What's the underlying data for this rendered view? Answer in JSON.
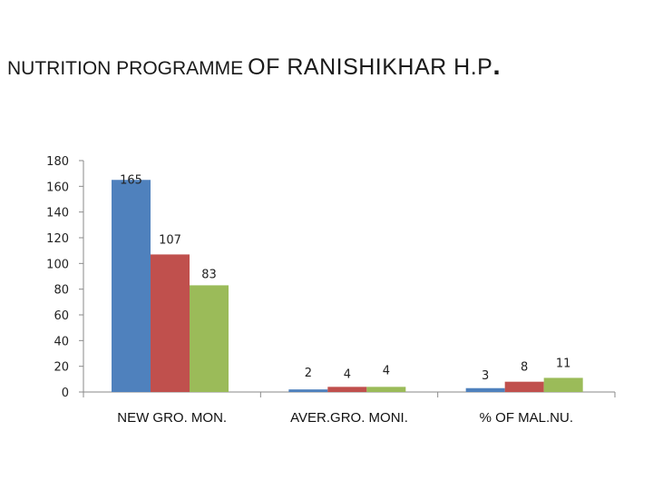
{
  "title_main": "NUTRITION PROGRAMME",
  "title_rest": "OF RANISHIKHAR   H.P",
  "title_dot": ".",
  "chart_data": {
    "type": "bar",
    "title": "NUTRITION PROGRAMME OF RANISHIKHAR   H.P.",
    "categories": [
      "NEW GRO. MON.",
      "AVER.GRO. MONI.",
      "% OF MAL.NU."
    ],
    "series": [
      {
        "values": [
          165,
          2,
          3
        ],
        "color": "#4f81bd"
      },
      {
        "values": [
          107,
          4,
          8
        ],
        "color": "#c0504d"
      },
      {
        "values": [
          83,
          4,
          11
        ],
        "color": "#9bbb59"
      }
    ],
    "ylim": [
      0,
      180
    ],
    "yticks": [
      0,
      20,
      40,
      60,
      80,
      100,
      120,
      140,
      160,
      180
    ],
    "grid": false,
    "legend": "none"
  }
}
